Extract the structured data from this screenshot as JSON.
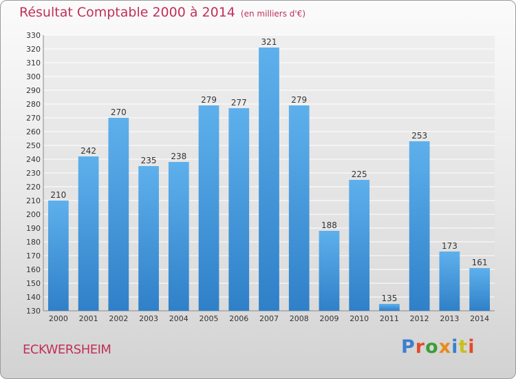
{
  "header": {
    "title": "Résultat Comptable 2000 à 2014",
    "subtitle": "(en milliers d'€)"
  },
  "footer": {
    "city": "ECKWERSHEIM",
    "brand": "Proxiti",
    "brand_colors": [
      "#3a7fd0",
      "#e44b2a",
      "#3a9d3a",
      "#e88a1a",
      "#3a7fd0",
      "#c8c020",
      "#e44b2a"
    ]
  },
  "colors": {
    "bar_light": "#5eb0ec",
    "bar_dark": "#2f80c8",
    "grid": "#ffffff",
    "text": "#333333"
  },
  "chart_data": {
    "type": "bar",
    "categories": [
      "2000",
      "2001",
      "2002",
      "2003",
      "2004",
      "2005",
      "2006",
      "2007",
      "2008",
      "2009",
      "2010",
      "2011",
      "2012",
      "2013",
      "2014"
    ],
    "values": [
      210,
      242,
      270,
      235,
      238,
      279,
      277,
      321,
      279,
      188,
      225,
      135,
      253,
      173,
      161
    ],
    "ylim": [
      130,
      330
    ],
    "ytick_step": 10,
    "grid": true,
    "data_labels": true,
    "xlabel": "",
    "ylabel": ""
  }
}
